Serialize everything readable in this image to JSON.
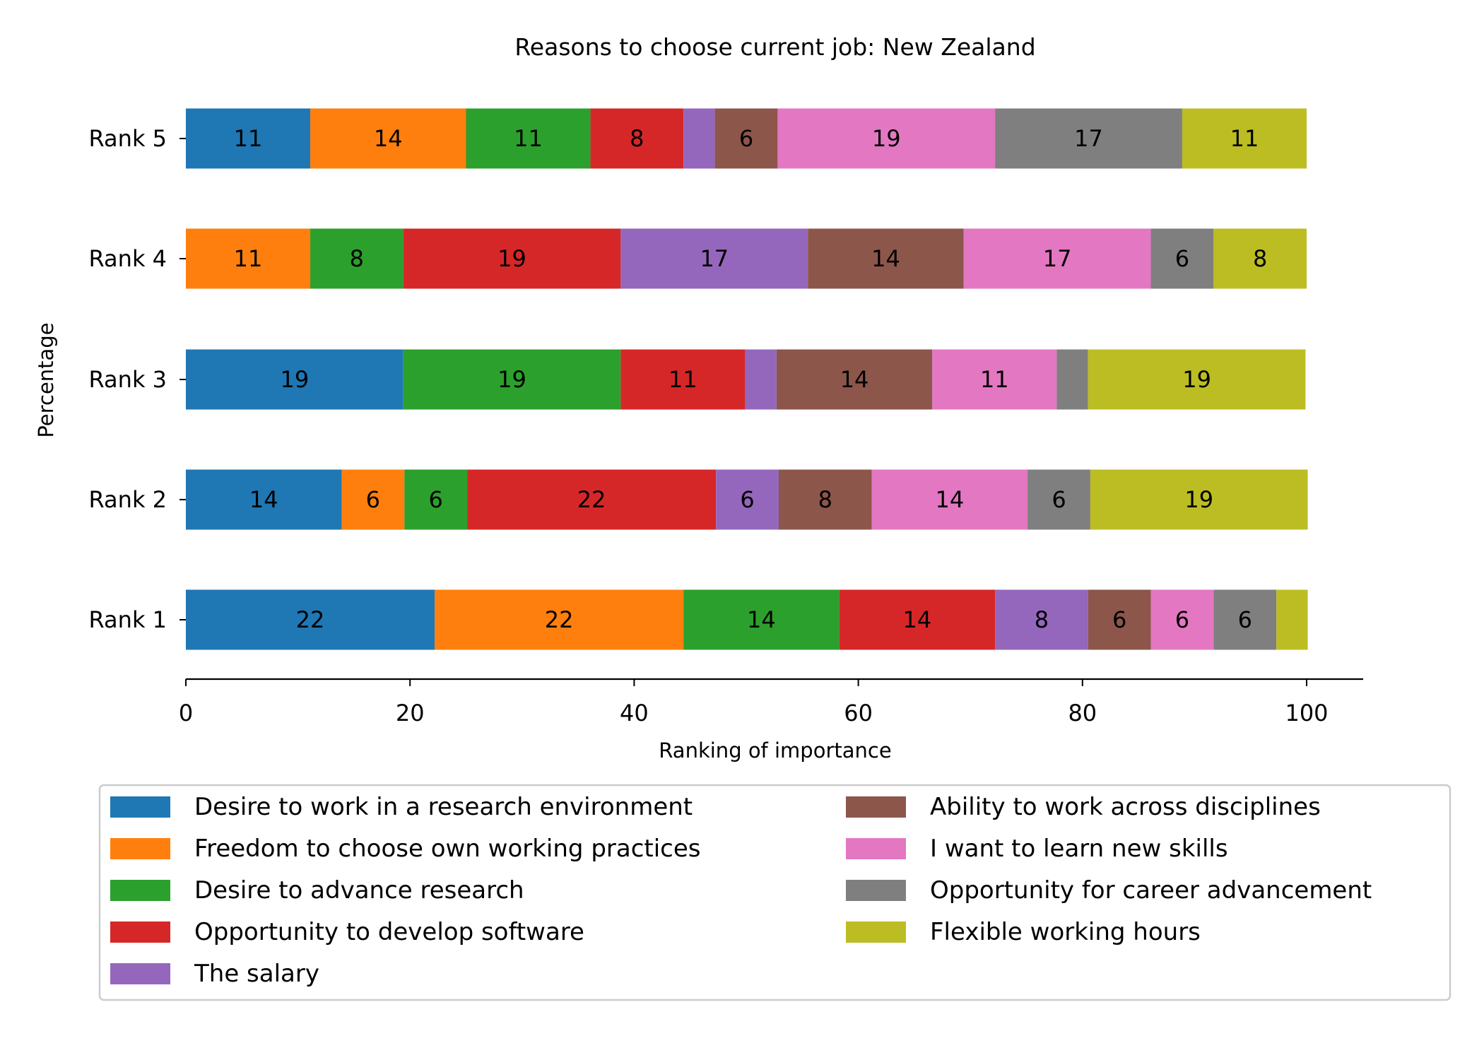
{
  "chart_data": {
    "type": "bar",
    "orientation": "horizontal",
    "stacked": true,
    "title": "Reasons to choose current job: New Zealand",
    "xlabel": "Ranking of importance",
    "ylabel": "Percentage",
    "xlim": [
      0,
      105
    ],
    "xticks": [
      0,
      20,
      40,
      60,
      80,
      100
    ],
    "categories": [
      "Rank 1",
      "Rank 2",
      "Rank 3",
      "Rank 4",
      "Rank 5"
    ],
    "grid": false,
    "legend_position": "bottom",
    "series": [
      {
        "name": "Desire to work in a research environment",
        "color": "#1f77b4",
        "values": [
          22.2,
          13.9,
          19.4,
          0,
          11.1
        ]
      },
      {
        "name": "Freedom to choose own working practices",
        "color": "#ff7f0e",
        "values": [
          22.2,
          5.6,
          0,
          11.1,
          13.9
        ]
      },
      {
        "name": "Desire to advance research",
        "color": "#2ca02c",
        "values": [
          13.9,
          5.6,
          19.4,
          8.3,
          11.1
        ]
      },
      {
        "name": "Opportunity to develop software",
        "color": "#d62728",
        "values": [
          13.9,
          22.2,
          11.1,
          19.4,
          8.3
        ]
      },
      {
        "name": "The salary",
        "color": "#9467bd",
        "values": [
          8.3,
          5.6,
          2.8,
          16.7,
          2.8
        ]
      },
      {
        "name": "Ability to work across disciplines",
        "color": "#8c564b",
        "values": [
          5.6,
          8.3,
          13.9,
          13.9,
          5.6
        ]
      },
      {
        "name": "I want to learn new skills",
        "color": "#e377c2",
        "values": [
          5.6,
          13.9,
          11.1,
          16.7,
          19.4
        ]
      },
      {
        "name": "Opportunity for career advancement",
        "color": "#7f7f7f",
        "values": [
          5.6,
          5.6,
          2.8,
          5.6,
          16.7
        ]
      },
      {
        "name": "Flexible working hours",
        "color": "#bcbd22",
        "values": [
          2.8,
          19.4,
          19.4,
          8.3,
          11.1
        ]
      }
    ],
    "data_labels": [
      [
        "22",
        "22",
        "14",
        "14",
        "8",
        "6",
        "6",
        "6",
        ""
      ],
      [
        "14",
        "6",
        "6",
        "22",
        "6",
        "8",
        "14",
        "6",
        "19"
      ],
      [
        "19",
        "",
        "19",
        "11",
        "",
        "14",
        "11",
        "",
        "19"
      ],
      [
        "",
        "11",
        "8",
        "19",
        "17",
        "14",
        "17",
        "6",
        "8"
      ],
      [
        "11",
        "14",
        "11",
        "8",
        "",
        "6",
        "19",
        "17",
        "11"
      ]
    ]
  }
}
